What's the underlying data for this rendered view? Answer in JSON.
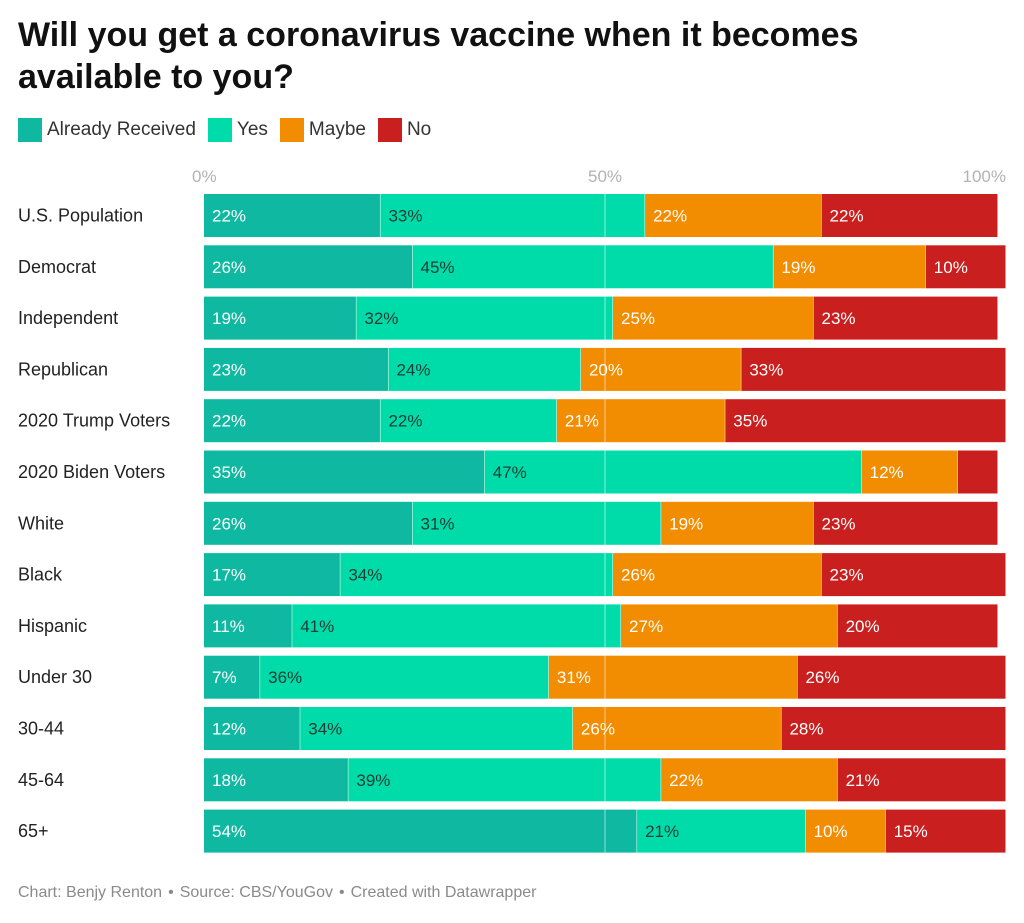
{
  "chart_data": {
    "type": "bar",
    "orientation": "horizontal",
    "stacked": true,
    "title": "Will you get a coronavirus vaccine when it becomes available to you?",
    "xlim": [
      0,
      100
    ],
    "x_ticks": [
      "0%",
      "50%",
      "100%"
    ],
    "legend_placement": "top-left",
    "categories": [
      "U.S. Population",
      "Democrat",
      "Independent",
      "Republican",
      "2020 Trump Voters",
      "2020 Biden Voters",
      "White",
      "Black",
      "Hispanic",
      "Under 30",
      "30-44",
      "45-64",
      "65+"
    ],
    "series": [
      {
        "name": "Already Received",
        "color": "#0fb8a1",
        "values": [
          22,
          26,
          19,
          23,
          22,
          35,
          26,
          17,
          11,
          7,
          12,
          18,
          54
        ]
      },
      {
        "name": "Yes",
        "color": "#00dca9",
        "values": [
          33,
          45,
          32,
          24,
          22,
          47,
          31,
          34,
          41,
          36,
          34,
          39,
          21
        ]
      },
      {
        "name": "Maybe",
        "color": "#f28c00",
        "values": [
          22,
          19,
          25,
          20,
          21,
          12,
          19,
          26,
          27,
          31,
          26,
          22,
          10
        ]
      },
      {
        "name": "No",
        "color": "#c9201f",
        "values": [
          22,
          10,
          23,
          33,
          35,
          5,
          23,
          23,
          20,
          26,
          28,
          21,
          15
        ]
      }
    ],
    "value_labels": [
      [
        "22%",
        "33%",
        "22%",
        "22%"
      ],
      [
        "26%",
        "45%",
        "19%",
        "10%"
      ],
      [
        "19%",
        "32%",
        "25%",
        "23%"
      ],
      [
        "23%",
        "24%",
        "20%",
        "33%"
      ],
      [
        "22%",
        "22%",
        "21%",
        "35%"
      ],
      [
        "35%",
        "47%",
        "12%",
        ""
      ],
      [
        "26%",
        "31%",
        "19%",
        "23%"
      ],
      [
        "17%",
        "34%",
        "26%",
        "23%"
      ],
      [
        "11%",
        "41%",
        "27%",
        "20%"
      ],
      [
        "7%",
        "36%",
        "31%",
        "26%"
      ],
      [
        "12%",
        "34%",
        "26%",
        "28%"
      ],
      [
        "18%",
        "39%",
        "22%",
        "21%"
      ],
      [
        "54%",
        "21%",
        "10%",
        "15%"
      ]
    ]
  },
  "footer": {
    "chart_by": "Chart: Benjy Renton",
    "source": "Source: CBS/YouGov",
    "created": "Created with Datawrapper",
    "separator": "•"
  }
}
